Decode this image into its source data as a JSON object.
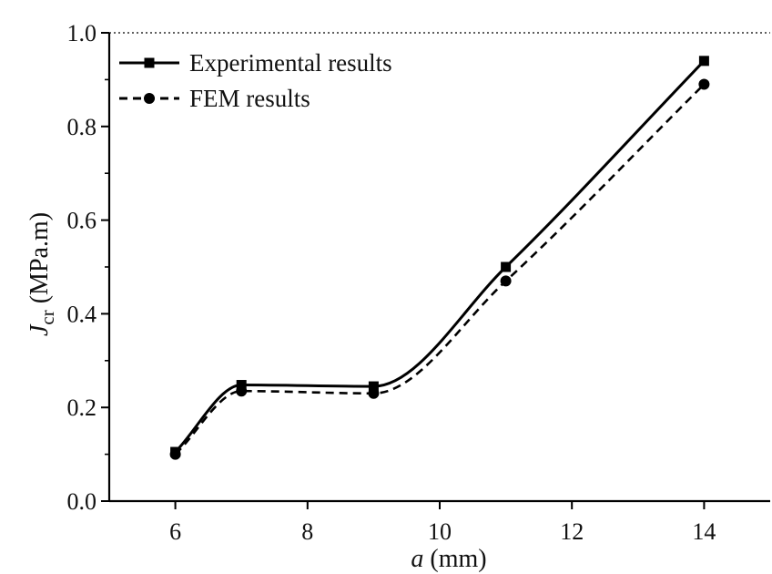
{
  "chart_data": {
    "type": "line",
    "title": "",
    "xlabel": {
      "var": "a",
      "unit": " (mm)"
    },
    "ylabel": {
      "var": "J",
      "sub": "cr",
      "unit": " (MPa.m)"
    },
    "xlim": [
      5,
      15
    ],
    "ylim": [
      0,
      1
    ],
    "xticks": [
      6,
      8,
      10,
      12,
      14
    ],
    "yticks": [
      0.0,
      0.2,
      0.4,
      0.6,
      0.8,
      1.0
    ],
    "xtick_labels": [
      "6",
      "8",
      "10",
      "12",
      "14"
    ],
    "ytick_labels": [
      "0.0",
      "0.2",
      "0.4",
      "0.6",
      "0.8",
      "1.0"
    ],
    "grid": false,
    "legend_position": "top-left",
    "series": [
      {
        "name": "Experimental results",
        "line_style": "solid",
        "marker": "square",
        "color": "#000000",
        "x": [
          6,
          7,
          9,
          11,
          14
        ],
        "y": [
          0.105,
          0.248,
          0.245,
          0.5,
          0.94
        ]
      },
      {
        "name": "FEM results",
        "line_style": "dashed",
        "marker": "circle",
        "color": "#000000",
        "x": [
          6,
          7,
          9,
          11,
          14
        ],
        "y": [
          0.1,
          0.235,
          0.23,
          0.47,
          0.89
        ]
      }
    ]
  }
}
